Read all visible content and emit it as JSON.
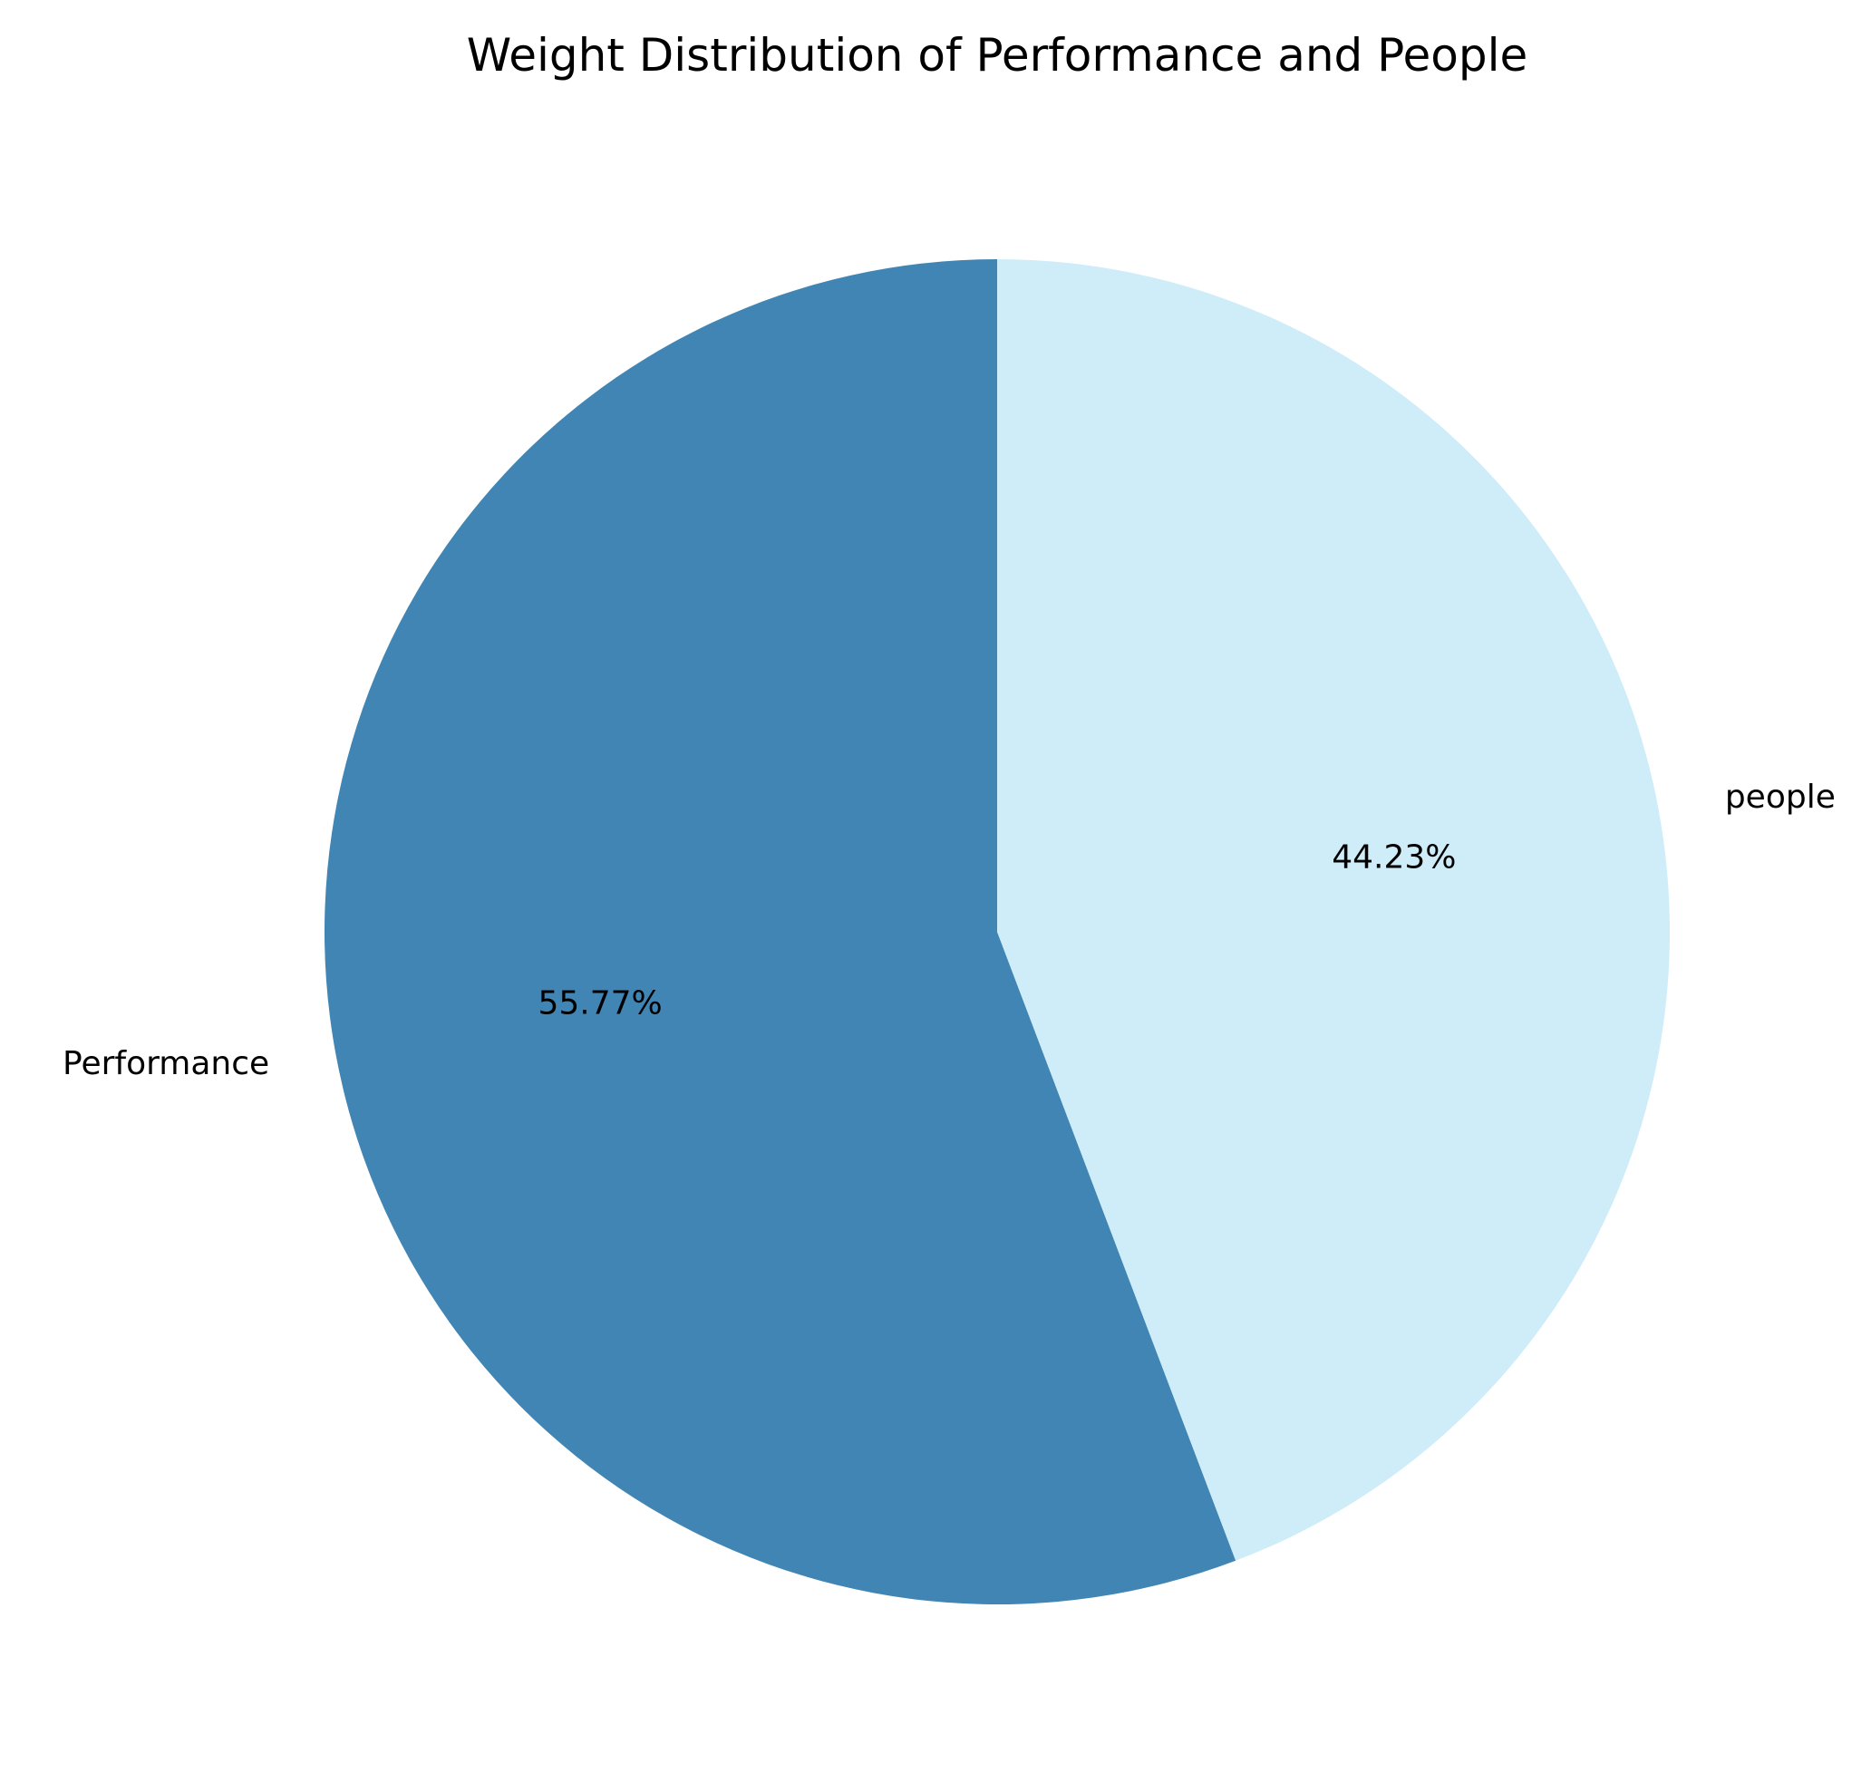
{
  "chart_data": {
    "type": "pie",
    "title": "Weight Distribution of Performance and People",
    "slices": [
      {
        "label": "Performance",
        "value": 55.77,
        "percent_label": "55.77%",
        "color": "#4085b4"
      },
      {
        "label": "people",
        "value": 44.23,
        "percent_label": "44.23%",
        "color": "#ceedf8"
      }
    ],
    "start_angle_deg": 90,
    "direction": "counterclockwise",
    "legend": "none"
  }
}
